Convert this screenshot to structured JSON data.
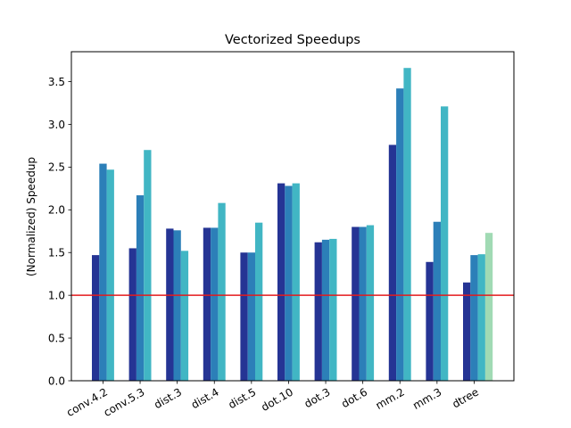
{
  "chart_data": {
    "type": "bar",
    "title": "Vectorized Speedups",
    "xlabel": "",
    "ylabel": "(Normalized) Speedup",
    "ylim": [
      0,
      3.85
    ],
    "yticks": [
      "0.0",
      "0.5",
      "1.0",
      "1.5",
      "2.0",
      "2.5",
      "3.0",
      "3.5"
    ],
    "ytick_values": [
      0,
      0.5,
      1.0,
      1.5,
      2.0,
      2.5,
      3.0,
      3.5
    ],
    "reference_line": {
      "value": 1.0,
      "color": "#e41a1c"
    },
    "categories": [
      "conv.4.2",
      "conv.5.3",
      "dist.3",
      "dist.4",
      "dist.5",
      "dot.10",
      "dot.3",
      "dot.6",
      "mm.2",
      "mm.3",
      "dtree"
    ],
    "series": [
      {
        "name": "series-1",
        "color": "#253494",
        "values": [
          1.47,
          1.55,
          1.78,
          1.79,
          1.5,
          2.31,
          1.62,
          1.8,
          2.76,
          1.39,
          1.15
        ]
      },
      {
        "name": "series-2",
        "color": "#2c7fb8",
        "values": [
          2.54,
          2.17,
          1.76,
          1.79,
          1.5,
          2.28,
          1.65,
          1.8,
          3.42,
          1.86,
          1.47
        ]
      },
      {
        "name": "series-3",
        "color": "#41b6c4",
        "values": [
          2.47,
          2.7,
          1.52,
          2.08,
          1.85,
          2.31,
          1.66,
          1.82,
          3.66,
          3.21,
          1.48
        ]
      },
      {
        "name": "series-4",
        "color": "#a1dab4",
        "values": [
          null,
          null,
          null,
          null,
          null,
          null,
          null,
          null,
          null,
          null,
          1.73
        ]
      }
    ],
    "grid": false,
    "legend": "none"
  }
}
